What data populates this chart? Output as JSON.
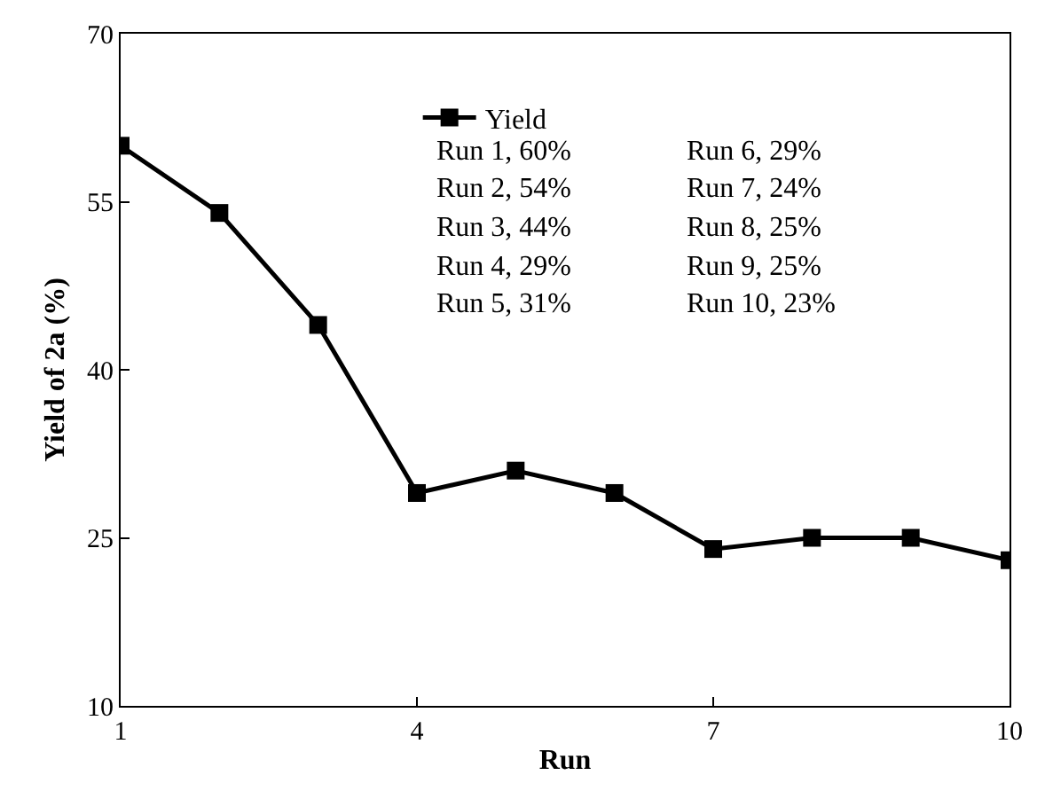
{
  "chart_data": {
    "type": "line",
    "xlabel": "Run",
    "ylabel": "Yield of 2a (%)",
    "x": [
      1,
      2,
      3,
      4,
      5,
      6,
      7,
      8,
      9,
      10
    ],
    "series": [
      {
        "name": "Yield",
        "color": "#000000",
        "values": [
          60,
          54,
          44,
          29,
          31,
          29,
          24,
          25,
          25,
          23
        ]
      }
    ],
    "xlim": [
      1,
      10
    ],
    "xticks": [
      1,
      4,
      7,
      10
    ],
    "ylim": [
      10,
      70
    ],
    "yticks": [
      10,
      25,
      40,
      55,
      70
    ],
    "marker": "square",
    "line_style": "solid",
    "legend": "top",
    "annotations": [
      "Run 1, 60%",
      "Run 2, 54%",
      "Run 3, 44%",
      "Run 4, 29%",
      "Run 5, 31%",
      "Run 6, 29%",
      "Run 7, 24%",
      "Run 8, 25%",
      "Run 9, 25%",
      "Run 10, 23%"
    ]
  }
}
